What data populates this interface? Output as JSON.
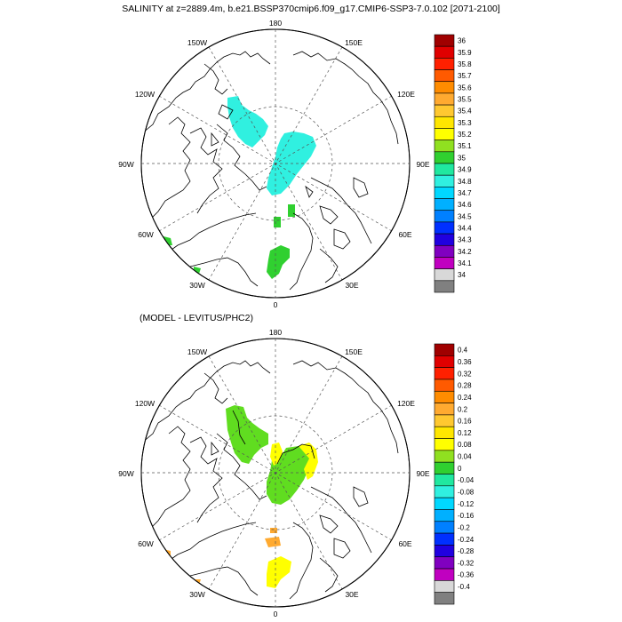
{
  "top_panel": {
    "title": "SALINITY at z=2889.4m, b.e21.BSSP370cmip6.f09_g17.CMIP6-SSP3-7.0.102 [2071-2100]",
    "lon_labels": {
      "n180": "180",
      "w150": "150W",
      "e150": "150E",
      "w120": "120W",
      "e120": "120E",
      "w90": "90W",
      "e90": "90E",
      "w60": "60W",
      "e60": "60E",
      "w30": "30W",
      "e30": "30E",
      "s0": "0"
    },
    "colorbar": {
      "labels": [
        "36",
        "35.9",
        "35.8",
        "35.7",
        "35.6",
        "35.5",
        "35.4",
        "35.3",
        "35.2",
        "35.1",
        "35",
        "34.9",
        "34.8",
        "34.7",
        "34.6",
        "34.5",
        "34.4",
        "34.3",
        "34.2",
        "34.1",
        "34"
      ],
      "colors": [
        "#a00000",
        "#e00000",
        "#ff2000",
        "#ff5a00",
        "#ff8c00",
        "#ffaa30",
        "#ffc830",
        "#ffe600",
        "#ffff00",
        "#90e020",
        "#30d030",
        "#20e8a0",
        "#30f0e0",
        "#00d8ff",
        "#00b0ff",
        "#0080ff",
        "#0030ff",
        "#2000e0",
        "#8000c0",
        "#c000c0",
        "#d8d8d8",
        "#808080"
      ]
    }
  },
  "bottom_panel": {
    "title": "(MODEL - LEVITUS/PHC2)",
    "lon_labels": {
      "n180": "180",
      "w150": "150W",
      "e150": "150E",
      "w120": "120W",
      "e120": "120E",
      "w90": "90W",
      "e90": "90E",
      "w60": "60W",
      "e60": "60E",
      "w30": "30W",
      "e30": "30E",
      "s0": "0"
    },
    "colorbar": {
      "labels": [
        "0.4",
        "0.36",
        "0.32",
        "0.28",
        "0.24",
        "0.2",
        "0.16",
        "0.12",
        "0.08",
        "0.04",
        "0",
        "-0.04",
        "-0.08",
        "-0.12",
        "-0.16",
        "-0.2",
        "-0.24",
        "-0.28",
        "-0.32",
        "-0.36",
        "-0.4"
      ],
      "colors": [
        "#a00000",
        "#e00000",
        "#ff2000",
        "#ff5a00",
        "#ff8c00",
        "#ffaa30",
        "#ffc830",
        "#ffe600",
        "#ffff00",
        "#90e020",
        "#30d030",
        "#20e8a0",
        "#30f0e0",
        "#00d8ff",
        "#00b0ff",
        "#0080ff",
        "#0030ff",
        "#2000e0",
        "#8000c0",
        "#c000c0",
        "#d8d8d8",
        "#808080"
      ]
    }
  },
  "colors": {
    "cyan_field": "#30f0e0",
    "green_field": "#30d030",
    "lime_field": "#60dd20",
    "yellow_field": "#ffff00",
    "orange_field": "#ffaa30"
  }
}
